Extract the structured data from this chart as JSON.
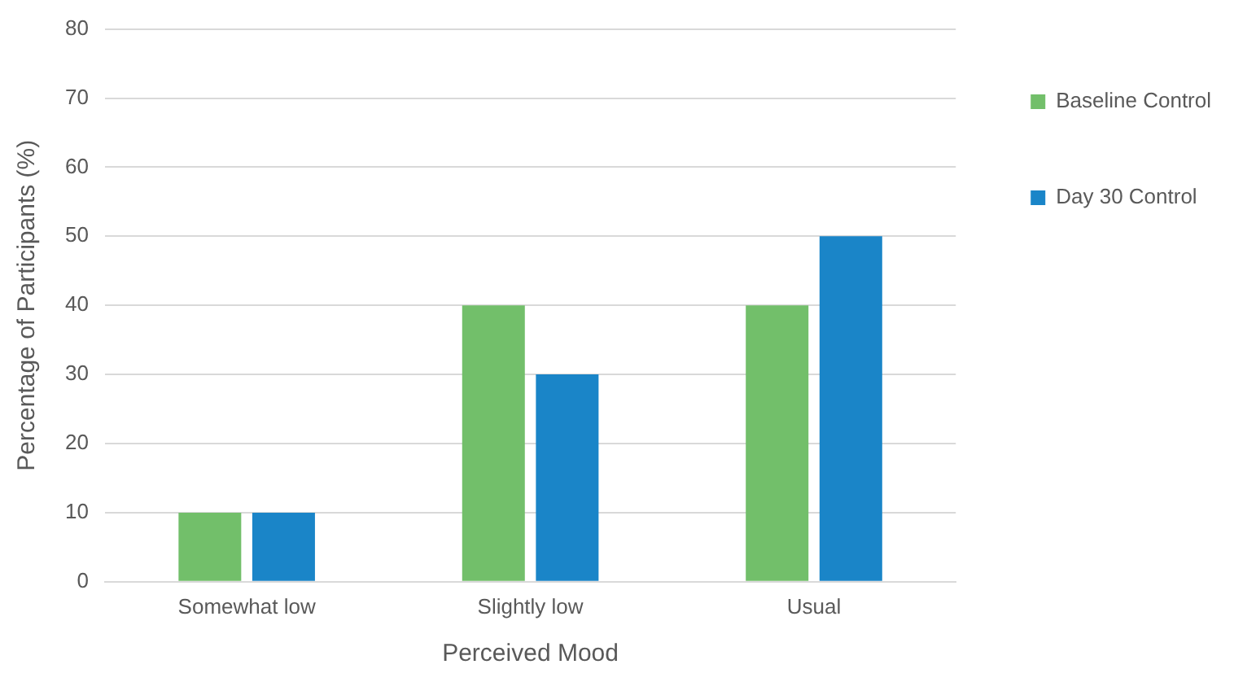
{
  "chart_data": {
    "type": "bar",
    "xlabel": "Perceived Mood",
    "ylabel": "Percentage of Participants (%)",
    "categories": [
      "Somewhat low",
      "Slightly low",
      "Usual"
    ],
    "series": [
      {
        "name": "Baseline Control",
        "color": "#72bf6a",
        "values": [
          10,
          40,
          40
        ]
      },
      {
        "name": "Day 30 Control",
        "color": "#1a85c8",
        "values": [
          10,
          30,
          50
        ]
      }
    ],
    "ylim": [
      0,
      80
    ],
    "yticks": [
      0,
      10,
      20,
      30,
      40,
      50,
      60,
      70,
      80
    ],
    "grid": "y",
    "legend": "top right"
  }
}
